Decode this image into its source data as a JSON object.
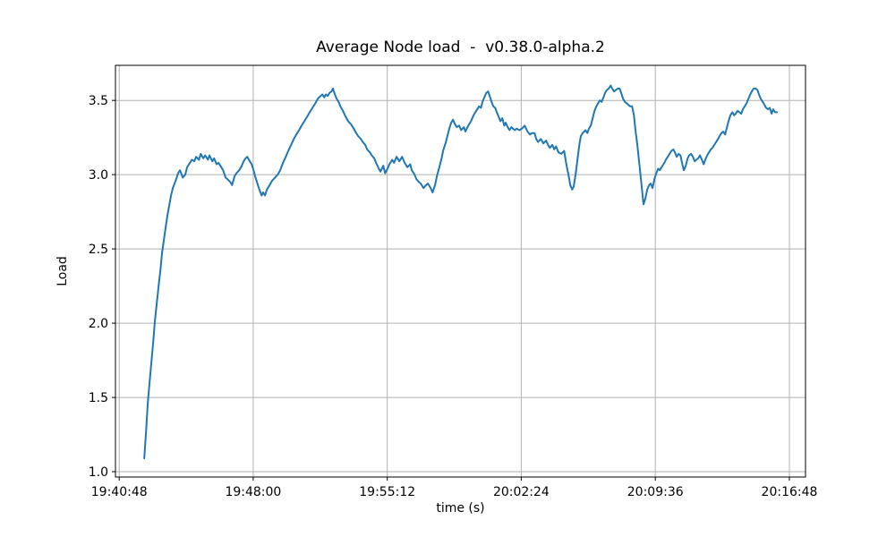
{
  "figure": {
    "background": "#ffffff"
  },
  "chart_data": {
    "type": "line",
    "title": "Average Node load  -  v0.38.0-alpha.2",
    "xlabel": "time (s)",
    "ylabel": "Load",
    "grid": true,
    "legend": "none",
    "line_color": "#1f77b4",
    "grid_color": "#b0b0b0",
    "spine_color": "#000000",
    "text_color": "#000000",
    "x_tick_labels": [
      "19:40:48",
      "19:48:00",
      "19:55:12",
      "20:02:24",
      "20:09:36",
      "20:16:48"
    ],
    "x_tick_seconds": [
      0,
      432,
      864,
      1296,
      1728,
      2160
    ],
    "xlim_seconds": [
      -12,
      2212
    ],
    "y_ticks": [
      1.0,
      1.5,
      2.0,
      2.5,
      3.0,
      3.5
    ],
    "ylim": [
      0.964,
      3.736
    ],
    "series": [
      {
        "name": "Average Node load",
        "points": [
          [
            81,
            1.09
          ],
          [
            87,
            1.28
          ],
          [
            92,
            1.46
          ],
          [
            98,
            1.6
          ],
          [
            104,
            1.74
          ],
          [
            110,
            1.88
          ],
          [
            115,
            2.01
          ],
          [
            121,
            2.13
          ],
          [
            127,
            2.25
          ],
          [
            133,
            2.36
          ],
          [
            138,
            2.47
          ],
          [
            144,
            2.56
          ],
          [
            150,
            2.65
          ],
          [
            156,
            2.73
          ],
          [
            162,
            2.8
          ],
          [
            167,
            2.86
          ],
          [
            173,
            2.91
          ],
          [
            182,
            2.96
          ],
          [
            190,
            3.01
          ],
          [
            196,
            3.03
          ],
          [
            205,
            2.98
          ],
          [
            213,
            3.0
          ],
          [
            219,
            3.05
          ],
          [
            228,
            3.08
          ],
          [
            234,
            3.1
          ],
          [
            242,
            3.09
          ],
          [
            248,
            3.12
          ],
          [
            257,
            3.1
          ],
          [
            263,
            3.14
          ],
          [
            271,
            3.11
          ],
          [
            277,
            3.13
          ],
          [
            286,
            3.1
          ],
          [
            291,
            3.13
          ],
          [
            300,
            3.09
          ],
          [
            306,
            3.11
          ],
          [
            314,
            3.07
          ],
          [
            320,
            3.08
          ],
          [
            329,
            3.05
          ],
          [
            335,
            3.03
          ],
          [
            343,
            2.98
          ],
          [
            349,
            2.97
          ],
          [
            358,
            2.95
          ],
          [
            364,
            2.93
          ],
          [
            372,
            2.99
          ],
          [
            378,
            3.01
          ],
          [
            387,
            3.03
          ],
          [
            395,
            3.06
          ],
          [
            401,
            3.09
          ],
          [
            407,
            3.11
          ],
          [
            413,
            3.12
          ],
          [
            421,
            3.09
          ],
          [
            427,
            3.07
          ],
          [
            433,
            3.03
          ],
          [
            438,
            2.99
          ],
          [
            444,
            2.95
          ],
          [
            450,
            2.91
          ],
          [
            459,
            2.86
          ],
          [
            464,
            2.88
          ],
          [
            470,
            2.86
          ],
          [
            476,
            2.9
          ],
          [
            485,
            2.93
          ],
          [
            493,
            2.96
          ],
          [
            502,
            2.98
          ],
          [
            511,
            3.0
          ],
          [
            519,
            3.03
          ],
          [
            528,
            3.08
          ],
          [
            537,
            3.12
          ],
          [
            545,
            3.16
          ],
          [
            554,
            3.2
          ],
          [
            563,
            3.24
          ],
          [
            571,
            3.27
          ],
          [
            580,
            3.3
          ],
          [
            588,
            3.33
          ],
          [
            597,
            3.36
          ],
          [
            606,
            3.39
          ],
          [
            614,
            3.42
          ],
          [
            623,
            3.45
          ],
          [
            632,
            3.48
          ],
          [
            640,
            3.51
          ],
          [
            649,
            3.53
          ],
          [
            655,
            3.54
          ],
          [
            661,
            3.52
          ],
          [
            666,
            3.54
          ],
          [
            672,
            3.53
          ],
          [
            678,
            3.55
          ],
          [
            684,
            3.56
          ],
          [
            689,
            3.58
          ],
          [
            695,
            3.54
          ],
          [
            701,
            3.51
          ],
          [
            707,
            3.49
          ],
          [
            713,
            3.46
          ],
          [
            721,
            3.43
          ],
          [
            730,
            3.39
          ],
          [
            738,
            3.36
          ],
          [
            747,
            3.34
          ],
          [
            756,
            3.31
          ],
          [
            764,
            3.28
          ],
          [
            770,
            3.26
          ],
          [
            779,
            3.24
          ],
          [
            785,
            3.22
          ],
          [
            793,
            3.2
          ],
          [
            799,
            3.17
          ],
          [
            808,
            3.15
          ],
          [
            814,
            3.13
          ],
          [
            822,
            3.11
          ],
          [
            828,
            3.08
          ],
          [
            837,
            3.04
          ],
          [
            842,
            3.02
          ],
          [
            851,
            3.06
          ],
          [
            857,
            3.01
          ],
          [
            865,
            3.04
          ],
          [
            871,
            3.07
          ],
          [
            880,
            3.1
          ],
          [
            886,
            3.08
          ],
          [
            894,
            3.12
          ],
          [
            903,
            3.09
          ],
          [
            912,
            3.12
          ],
          [
            920,
            3.08
          ],
          [
            929,
            3.05
          ],
          [
            938,
            3.07
          ],
          [
            943,
            3.03
          ],
          [
            952,
            3.0
          ],
          [
            958,
            2.97
          ],
          [
            966,
            2.95
          ],
          [
            972,
            2.94
          ],
          [
            981,
            2.91
          ],
          [
            989,
            2.93
          ],
          [
            995,
            2.94
          ],
          [
            1004,
            2.91
          ],
          [
            1010,
            2.88
          ],
          [
            1018,
            2.93
          ],
          [
            1024,
            2.99
          ],
          [
            1033,
            3.06
          ],
          [
            1039,
            3.11
          ],
          [
            1044,
            3.16
          ],
          [
            1053,
            3.22
          ],
          [
            1059,
            3.27
          ],
          [
            1064,
            3.31
          ],
          [
            1070,
            3.35
          ],
          [
            1076,
            3.37
          ],
          [
            1082,
            3.34
          ],
          [
            1088,
            3.32
          ],
          [
            1096,
            3.33
          ],
          [
            1102,
            3.3
          ],
          [
            1111,
            3.32
          ],
          [
            1116,
            3.29
          ],
          [
            1125,
            3.33
          ],
          [
            1134,
            3.36
          ],
          [
            1140,
            3.39
          ],
          [
            1145,
            3.41
          ],
          [
            1151,
            3.43
          ],
          [
            1160,
            3.46
          ],
          [
            1166,
            3.45
          ],
          [
            1171,
            3.49
          ],
          [
            1177,
            3.52
          ],
          [
            1183,
            3.55
          ],
          [
            1189,
            3.56
          ],
          [
            1194,
            3.53
          ],
          [
            1200,
            3.49
          ],
          [
            1206,
            3.46
          ],
          [
            1212,
            3.45
          ],
          [
            1217,
            3.42
          ],
          [
            1223,
            3.39
          ],
          [
            1229,
            3.36
          ],
          [
            1235,
            3.38
          ],
          [
            1241,
            3.33
          ],
          [
            1246,
            3.35
          ],
          [
            1252,
            3.32
          ],
          [
            1258,
            3.3
          ],
          [
            1264,
            3.32
          ],
          [
            1269,
            3.31
          ],
          [
            1275,
            3.3
          ],
          [
            1281,
            3.31
          ],
          [
            1290,
            3.3
          ],
          [
            1298,
            3.31
          ],
          [
            1307,
            3.33
          ],
          [
            1316,
            3.29
          ],
          [
            1324,
            3.27
          ],
          [
            1330,
            3.28
          ],
          [
            1339,
            3.28
          ],
          [
            1344,
            3.24
          ],
          [
            1350,
            3.22
          ],
          [
            1359,
            3.24
          ],
          [
            1367,
            3.21
          ],
          [
            1376,
            3.23
          ],
          [
            1382,
            3.2
          ],
          [
            1388,
            3.18
          ],
          [
            1396,
            3.2
          ],
          [
            1402,
            3.17
          ],
          [
            1408,
            3.19
          ],
          [
            1416,
            3.15
          ],
          [
            1425,
            3.14
          ],
          [
            1434,
            3.16
          ],
          [
            1442,
            3.06
          ],
          [
            1448,
            3.0
          ],
          [
            1454,
            2.93
          ],
          [
            1460,
            2.9
          ],
          [
            1465,
            2.92
          ],
          [
            1471,
            3.0
          ],
          [
            1477,
            3.1
          ],
          [
            1483,
            3.2
          ],
          [
            1488,
            3.26
          ],
          [
            1494,
            3.28
          ],
          [
            1503,
            3.3
          ],
          [
            1509,
            3.28
          ],
          [
            1514,
            3.31
          ],
          [
            1520,
            3.33
          ],
          [
            1526,
            3.38
          ],
          [
            1532,
            3.43
          ],
          [
            1538,
            3.46
          ],
          [
            1543,
            3.48
          ],
          [
            1549,
            3.5
          ],
          [
            1555,
            3.49
          ],
          [
            1561,
            3.52
          ],
          [
            1566,
            3.55
          ],
          [
            1572,
            3.57
          ],
          [
            1578,
            3.58
          ],
          [
            1584,
            3.6
          ],
          [
            1589,
            3.58
          ],
          [
            1595,
            3.56
          ],
          [
            1601,
            3.57
          ],
          [
            1607,
            3.58
          ],
          [
            1613,
            3.58
          ],
          [
            1618,
            3.55
          ],
          [
            1624,
            3.51
          ],
          [
            1630,
            3.49
          ],
          [
            1636,
            3.48
          ],
          [
            1641,
            3.47
          ],
          [
            1647,
            3.46
          ],
          [
            1653,
            3.46
          ],
          [
            1659,
            3.4
          ],
          [
            1664,
            3.3
          ],
          [
            1670,
            3.2
          ],
          [
            1676,
            3.08
          ],
          [
            1682,
            2.96
          ],
          [
            1688,
            2.84
          ],
          [
            1690,
            2.8
          ],
          [
            1696,
            2.84
          ],
          [
            1702,
            2.9
          ],
          [
            1708,
            2.93
          ],
          [
            1713,
            2.94
          ],
          [
            1719,
            2.91
          ],
          [
            1725,
            2.97
          ],
          [
            1731,
            3.01
          ],
          [
            1737,
            3.04
          ],
          [
            1742,
            3.03
          ],
          [
            1751,
            3.06
          ],
          [
            1757,
            3.08
          ],
          [
            1762,
            3.1
          ],
          [
            1768,
            3.12
          ],
          [
            1774,
            3.14
          ],
          [
            1780,
            3.16
          ],
          [
            1786,
            3.17
          ],
          [
            1791,
            3.15
          ],
          [
            1797,
            3.12
          ],
          [
            1803,
            3.14
          ],
          [
            1809,
            3.13
          ],
          [
            1814,
            3.08
          ],
          [
            1820,
            3.03
          ],
          [
            1826,
            3.06
          ],
          [
            1832,
            3.11
          ],
          [
            1837,
            3.13
          ],
          [
            1843,
            3.14
          ],
          [
            1849,
            3.12
          ],
          [
            1855,
            3.09
          ],
          [
            1860,
            3.1
          ],
          [
            1866,
            3.11
          ],
          [
            1872,
            3.13
          ],
          [
            1878,
            3.1
          ],
          [
            1884,
            3.07
          ],
          [
            1889,
            3.1
          ],
          [
            1895,
            3.13
          ],
          [
            1901,
            3.15
          ],
          [
            1907,
            3.17
          ],
          [
            1912,
            3.18
          ],
          [
            1918,
            3.2
          ],
          [
            1924,
            3.22
          ],
          [
            1930,
            3.24
          ],
          [
            1935,
            3.26
          ],
          [
            1941,
            3.28
          ],
          [
            1947,
            3.29
          ],
          [
            1953,
            3.27
          ],
          [
            1959,
            3.32
          ],
          [
            1964,
            3.36
          ],
          [
            1970,
            3.4
          ],
          [
            1976,
            3.42
          ],
          [
            1982,
            3.4
          ],
          [
            1987,
            3.41
          ],
          [
            1993,
            3.43
          ],
          [
            1999,
            3.42
          ],
          [
            2005,
            3.41
          ],
          [
            2010,
            3.44
          ],
          [
            2016,
            3.46
          ],
          [
            2022,
            3.48
          ],
          [
            2028,
            3.51
          ],
          [
            2034,
            3.54
          ],
          [
            2039,
            3.56
          ],
          [
            2045,
            3.58
          ],
          [
            2051,
            3.58
          ],
          [
            2057,
            3.57
          ],
          [
            2062,
            3.54
          ],
          [
            2068,
            3.51
          ],
          [
            2074,
            3.49
          ],
          [
            2080,
            3.47
          ],
          [
            2085,
            3.45
          ],
          [
            2091,
            3.44
          ],
          [
            2097,
            3.45
          ],
          [
            2103,
            3.41
          ],
          [
            2108,
            3.44
          ],
          [
            2114,
            3.42
          ],
          [
            2120,
            3.42
          ]
        ]
      }
    ]
  }
}
